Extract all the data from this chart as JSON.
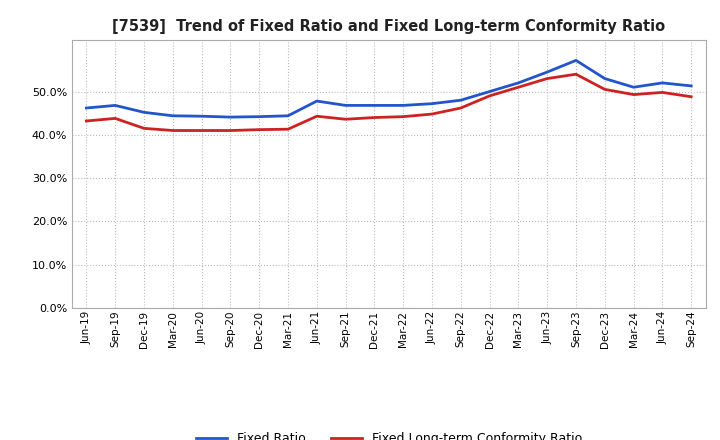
{
  "title": "[7539]  Trend of Fixed Ratio and Fixed Long-term Conformity Ratio",
  "x_labels": [
    "Jun-19",
    "Sep-19",
    "Dec-19",
    "Mar-20",
    "Jun-20",
    "Sep-20",
    "Dec-20",
    "Mar-21",
    "Jun-21",
    "Sep-21",
    "Dec-21",
    "Mar-22",
    "Jun-22",
    "Sep-22",
    "Dec-22",
    "Mar-23",
    "Jun-23",
    "Sep-23",
    "Dec-23",
    "Mar-24",
    "Jun-24",
    "Sep-24"
  ],
  "fixed_ratio": [
    0.462,
    0.468,
    0.452,
    0.444,
    0.443,
    0.441,
    0.442,
    0.444,
    0.478,
    0.468,
    0.468,
    0.468,
    0.472,
    0.48,
    0.5,
    0.52,
    0.545,
    0.572,
    0.53,
    0.51,
    0.52,
    0.513
  ],
  "fixed_lt_ratio": [
    0.432,
    0.438,
    0.415,
    0.41,
    0.41,
    0.41,
    0.412,
    0.413,
    0.443,
    0.436,
    0.44,
    0.442,
    0.448,
    0.462,
    0.49,
    0.51,
    0.53,
    0.54,
    0.505,
    0.493,
    0.498,
    0.488
  ],
  "fixed_ratio_color": "#2255cc",
  "fixed_lt_ratio_color": "#cc2222",
  "ylim": [
    0.0,
    0.62
  ],
  "yticks": [
    0.0,
    0.1,
    0.2,
    0.3,
    0.4,
    0.5
  ],
  "background_color": "#ffffff",
  "grid_color": "#aaaaaa",
  "legend_fixed": "Fixed Ratio",
  "legend_fixed_lt": "Fixed Long-term Conformity Ratio"
}
